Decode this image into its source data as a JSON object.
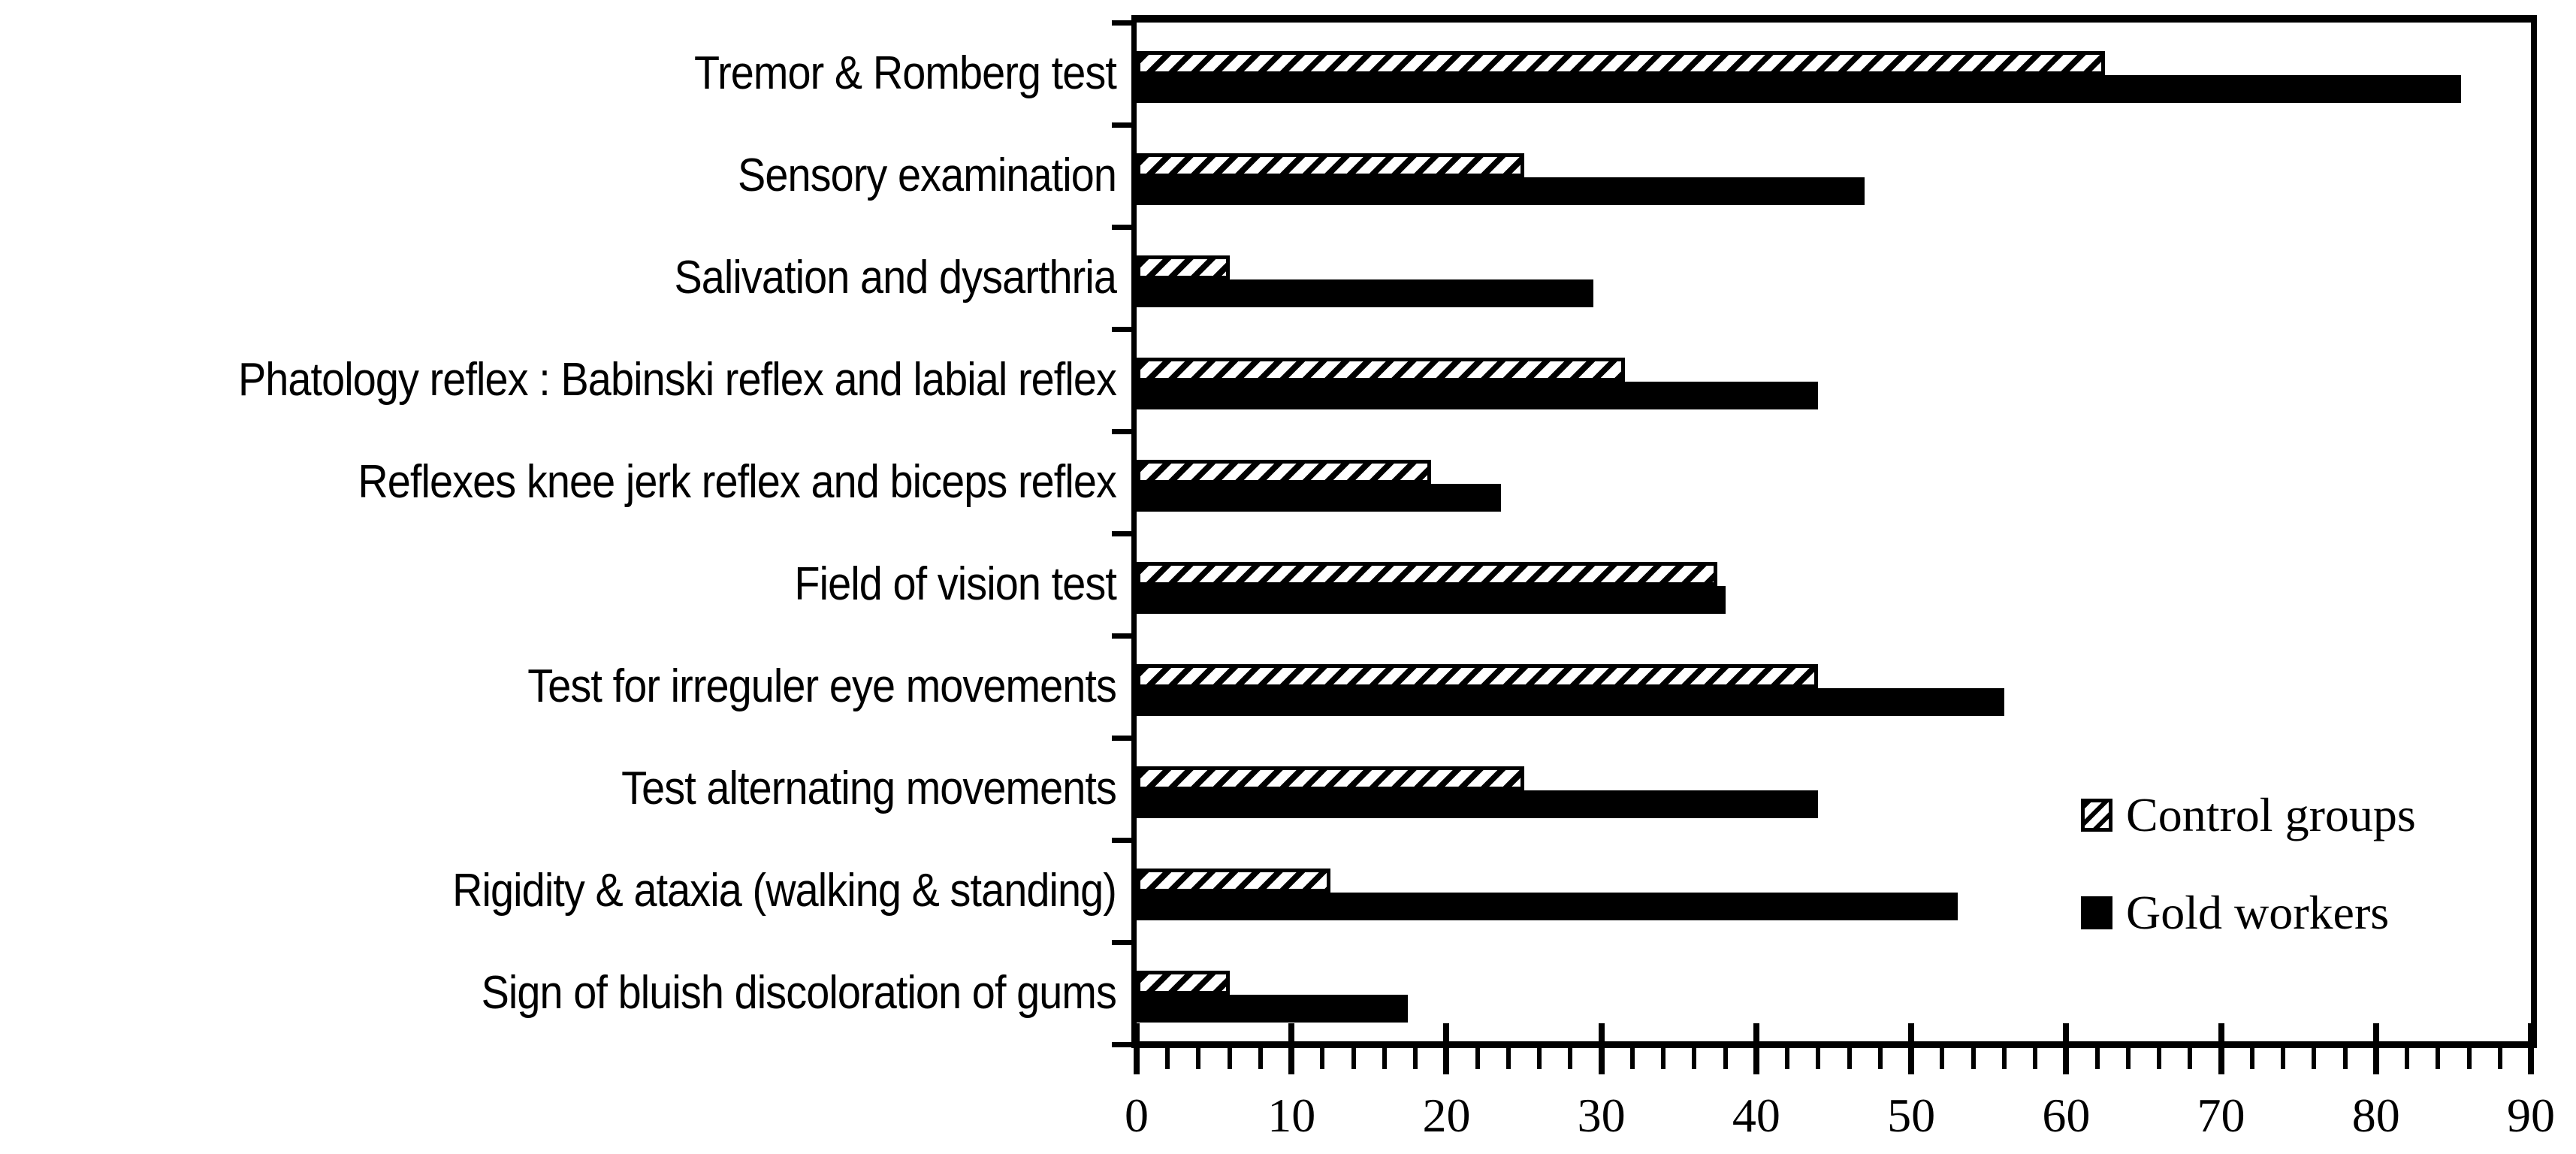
{
  "chart_data": {
    "type": "bar",
    "orientation": "horizontal",
    "title": "",
    "xlabel": "",
    "ylabel": "",
    "xlim": [
      0,
      90
    ],
    "x_major_tick_step": 10,
    "x_minor_tick_step": 2,
    "x_tick_labels": [
      "0",
      "10",
      "20",
      "30",
      "40",
      "50",
      "60",
      "70",
      "80",
      "90"
    ],
    "grid": "off",
    "plot_border": "on",
    "categories": [
      "Tremor & Romberg test",
      "Sensory examination",
      "Salivation and dysarthria",
      "Phatology reflex : Babinski reflex and labial reflex",
      "Reflexes knee jerk reflex and biceps reflex",
      "Field of vision test",
      "Test for irreguler eye movements",
      "Test alternating movements",
      "Rigidity & ataxia (walking & standing)",
      "Sign of bluish discoloration of gums"
    ],
    "series": [
      {
        "name": "Control groups",
        "style": "hatched",
        "values": [
          62.5,
          25,
          6,
          31.5,
          19,
          37.5,
          44,
          25,
          12.5,
          6
        ]
      },
      {
        "name": "Gold workers",
        "style": "solid",
        "values": [
          85.5,
          47,
          29.5,
          44,
          23.5,
          38,
          56,
          44,
          53,
          17.5
        ]
      }
    ],
    "legend": {
      "position": "right",
      "entries": [
        "Control groups",
        "Gold workers"
      ]
    },
    "colors": {
      "foreground": "#000000",
      "background": "#ffffff"
    }
  }
}
